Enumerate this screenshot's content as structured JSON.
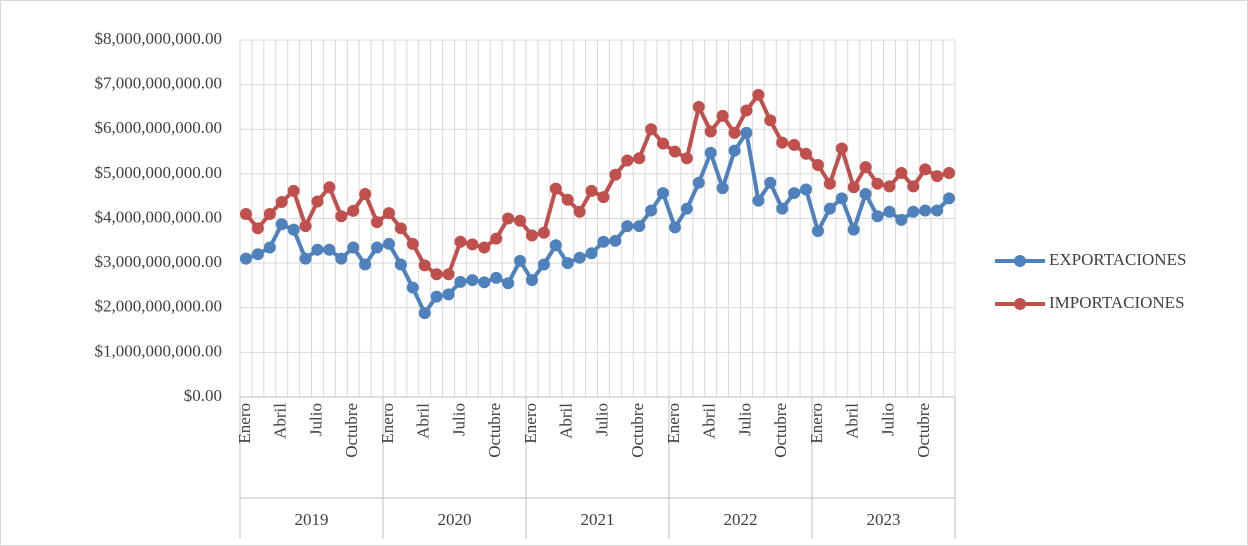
{
  "chart_data": {
    "type": "line",
    "categories": [
      "Enero",
      null,
      null,
      "Abril",
      null,
      null,
      "Julio",
      null,
      null,
      "Octubre",
      null,
      null,
      "Enero",
      null,
      null,
      "Abril",
      null,
      null,
      "Julio",
      null,
      null,
      "Octubre",
      null,
      null,
      "Enero",
      null,
      null,
      "Abril",
      null,
      null,
      "Julio",
      null,
      null,
      "Octubre",
      null,
      null,
      "Enero",
      null,
      null,
      "Abril",
      null,
      null,
      "Julio",
      null,
      null,
      "Octubre",
      null,
      null,
      "Enero",
      null,
      null,
      "Abril",
      null,
      null,
      "Julio",
      null,
      null,
      "Octubre",
      null,
      null
    ],
    "groups": [
      "2019",
      "2020",
      "2021",
      "2022",
      "2023"
    ],
    "series": [
      {
        "name": "EXPORTACIONES",
        "color": "#4f81bd",
        "values": [
          3100000000,
          3200000000,
          3350000000,
          3870000000,
          3750000000,
          3100000000,
          3300000000,
          3300000000,
          3100000000,
          3350000000,
          2970000000,
          3350000000,
          3430000000,
          2970000000,
          2450000000,
          1880000000,
          2250000000,
          2300000000,
          2580000000,
          2620000000,
          2570000000,
          2670000000,
          2550000000,
          3050000000,
          2620000000,
          2970000000,
          3400000000,
          3000000000,
          3120000000,
          3220000000,
          3480000000,
          3500000000,
          3830000000,
          3830000000,
          4180000000,
          4570000000,
          3800000000,
          4220000000,
          4800000000,
          5470000000,
          4680000000,
          5520000000,
          5920000000,
          4400000000,
          4800000000,
          4220000000,
          4570000000,
          4650000000,
          3720000000,
          4220000000,
          4450000000,
          3750000000,
          4550000000,
          4050000000,
          4150000000,
          3970000000,
          4150000000,
          4180000000,
          4180000000,
          4450000000
        ]
      },
      {
        "name": "IMPORTACIONES",
        "color": "#c0504d",
        "values": [
          4100000000,
          3780000000,
          4100000000,
          4370000000,
          4620000000,
          3830000000,
          4380000000,
          4700000000,
          4050000000,
          4170000000,
          4550000000,
          3920000000,
          4120000000,
          3780000000,
          3430000000,
          2950000000,
          2750000000,
          2750000000,
          3480000000,
          3420000000,
          3350000000,
          3550000000,
          4000000000,
          3950000000,
          3620000000,
          3680000000,
          4670000000,
          4420000000,
          4150000000,
          4620000000,
          4480000000,
          4980000000,
          5300000000,
          5350000000,
          6000000000,
          5680000000,
          5500000000,
          5350000000,
          6500000000,
          5950000000,
          6300000000,
          5920000000,
          6420000000,
          6770000000,
          6200000000,
          5700000000,
          5650000000,
          5450000000,
          5200000000,
          4780000000,
          5570000000,
          4700000000,
          5150000000,
          4780000000,
          4720000000,
          5020000000,
          4720000000,
          5100000000,
          4950000000,
          5020000000
        ]
      }
    ],
    "ylim": [
      0,
      8000000000
    ],
    "yticks": [
      {
        "value": 0,
        "label": "$0.00"
      },
      {
        "value": 1000000000,
        "label": "$1,000,000,000.00"
      },
      {
        "value": 2000000000,
        "label": "$2,000,000,000.00"
      },
      {
        "value": 3000000000,
        "label": "$3,000,000,000.00"
      },
      {
        "value": 4000000000,
        "label": "$4,000,000,000.00"
      },
      {
        "value": 5000000000,
        "label": "$5,000,000,000.00"
      },
      {
        "value": 6000000000,
        "label": "$6,000,000,000.00"
      },
      {
        "value": 7000000000,
        "label": "$7,000,000,000.00"
      },
      {
        "value": 8000000000,
        "label": "$8,000,000,000.00"
      }
    ],
    "grid": true,
    "legend": "right"
  }
}
